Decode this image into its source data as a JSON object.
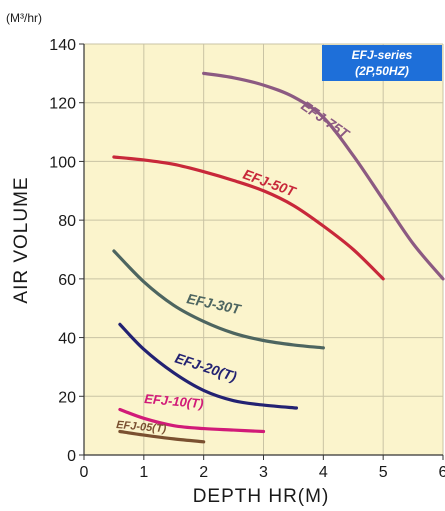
{
  "chart_data": {
    "type": "line",
    "ylabel": "AIR VOLUME",
    "y_unit": "(M³/hr)",
    "xlabel": "DEPTH HR(M)",
    "xlim": [
      0,
      6
    ],
    "ylim": [
      0,
      140
    ],
    "x_ticks": [
      "0",
      "1",
      "2",
      "3",
      "4",
      "5",
      "6"
    ],
    "y_ticks": [
      "0",
      "20",
      "40",
      "60",
      "80",
      "100",
      "120",
      "140"
    ],
    "grid": true,
    "legend_box": {
      "line1": "EFJ-series",
      "line2": "(2P,50HZ)"
    },
    "colors": {
      "plot_background": "#fbf4cc",
      "grid": "#c9c3a4",
      "badge": "#1e6fd9"
    },
    "series": [
      {
        "name": "EFJ-75T",
        "color": "#8c5a82",
        "x": [
          2.0,
          2.5,
          3.0,
          3.5,
          4.0,
          4.5,
          5.0,
          5.5,
          6.0
        ],
        "y": [
          130,
          128.5,
          126,
          122,
          115,
          102,
          87,
          72,
          60
        ]
      },
      {
        "name": "EFJ-50T",
        "color": "#c8283a",
        "x": [
          0.5,
          1.0,
          1.5,
          2.0,
          2.5,
          3.0,
          3.5,
          4.0,
          4.5,
          5.0
        ],
        "y": [
          101.5,
          100.5,
          99,
          96.5,
          93.5,
          90,
          85,
          78,
          70,
          60
        ]
      },
      {
        "name": "EFJ-30T",
        "color": "#4d6560",
        "x": [
          0.5,
          1.0,
          1.5,
          2.0,
          2.5,
          3.0,
          3.5,
          4.0
        ],
        "y": [
          69.5,
          59,
          51,
          45.5,
          41.5,
          39,
          37.5,
          36.5
        ]
      },
      {
        "name": "EFJ-20(T)",
        "color": "#232272",
        "x": [
          0.6,
          1.0,
          1.5,
          2.0,
          2.5,
          3.0,
          3.55
        ],
        "y": [
          44.5,
          36,
          28,
          22,
          18.5,
          17,
          16
        ]
      },
      {
        "name": "EFJ-10(T)",
        "color": "#d11a78",
        "x": [
          0.6,
          1.0,
          1.5,
          2.0,
          2.5,
          3.0
        ],
        "y": [
          15.5,
          12.5,
          10,
          9,
          8.5,
          8
        ]
      },
      {
        "name": "EFJ-05(T)",
        "color": "#7a5030",
        "x": [
          0.6,
          1.0,
          1.5,
          2.0
        ],
        "y": [
          8,
          6.8,
          5.5,
          4.5
        ]
      }
    ]
  }
}
